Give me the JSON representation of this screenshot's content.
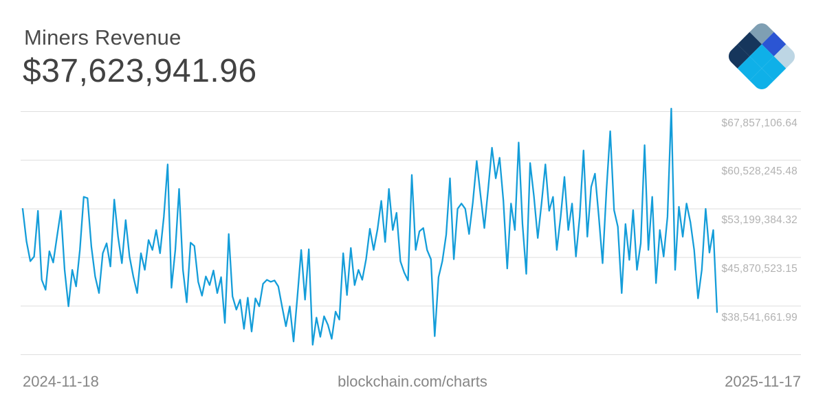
{
  "header": {
    "title": "Miners Revenue",
    "value": "$37,623,941.96"
  },
  "logo": {
    "name": "blockchain-com-logo",
    "colors": {
      "slate": "#7f9fb3",
      "royal": "#2b55d3",
      "light": "#bdd6e4",
      "navy": "#16365c",
      "cyan": "#0fb0e8"
    }
  },
  "footer": {
    "start_date": "2024-11-18",
    "site": "blockchain.com/charts",
    "end_date": "2025-11-17"
  },
  "chart_data": {
    "type": "line",
    "title": "Miners Revenue",
    "current_value_usd": "$37,623,941.96",
    "x_start": "2024-11-18",
    "x_end": "2025-11-17",
    "x_unit": "day (365 days total, series sampled every 2 days)",
    "y_unit": "USD millions",
    "grid": "horizontal-only",
    "legend": "none",
    "line_color": "#149dd9",
    "grid_color": "#dedede",
    "tick_label_color": "#b2b2b2",
    "ytick_labels": [
      "$67,857,106.64",
      "$60,528,245.48",
      "$53,199,384.32",
      "$45,870,523.15",
      "$38,541,661.99"
    ],
    "ytick_values_m": [
      67.857107,
      60.528245,
      53.199384,
      45.870523,
      38.541662
    ],
    "ylim_m": [
      31.212801,
      68.5
    ],
    "values_m": [
      53.2,
      48.3,
      45.3,
      46.0,
      52.9,
      42.5,
      41.0,
      46.8,
      45.1,
      49.0,
      52.9,
      44.0,
      38.5,
      44.0,
      41.5,
      47.0,
      55.0,
      54.8,
      47.5,
      43.0,
      40.5,
      46.5,
      48.0,
      44.5,
      54.6,
      49.0,
      45.0,
      51.5,
      46.0,
      43.0,
      40.5,
      46.5,
      44.0,
      48.5,
      47.0,
      50.0,
      46.5,
      52.0,
      59.9,
      41.3,
      47.0,
      56.2,
      44.0,
      39.1,
      48.1,
      47.6,
      42.2,
      40.1,
      43.0,
      41.7,
      43.9,
      40.5,
      42.9,
      36.0,
      49.4,
      40.0,
      38.0,
      39.5,
      35.1,
      39.8,
      34.7,
      39.7,
      38.5,
      41.9,
      42.5,
      42.2,
      42.4,
      41.5,
      38.4,
      35.5,
      38.5,
      33.2,
      40.0,
      47.0,
      39.5,
      47.1,
      32.7,
      36.8,
      33.9,
      37.0,
      35.7,
      33.6,
      37.7,
      36.5,
      46.5,
      40.2,
      47.3,
      41.7,
      44.0,
      42.5,
      45.6,
      50.2,
      47.0,
      50.1,
      54.4,
      48.2,
      56.2,
      50.0,
      52.6,
      45.3,
      43.6,
      42.4,
      58.3,
      47.0,
      49.8,
      50.3,
      47.0,
      45.6,
      34.0,
      42.9,
      45.3,
      49.3,
      57.8,
      45.6,
      53.2,
      54.0,
      53.2,
      49.4,
      54.2,
      60.4,
      55.3,
      50.3,
      56.1,
      62.4,
      57.8,
      60.9,
      54.4,
      44.2,
      54.0,
      50.0,
      63.2,
      50.9,
      43.4,
      60.1,
      55.1,
      48.8,
      54.0,
      59.9,
      52.9,
      55.0,
      47.0,
      52.0,
      58.0,
      50.0,
      54.0,
      46.0,
      52.0,
      62.0,
      49.0,
      56.5,
      58.5,
      52.0,
      45.0,
      56.0,
      64.9,
      53.0,
      50.5,
      40.5,
      50.9,
      45.5,
      53.0,
      44.0,
      48.0,
      62.8,
      47.0,
      55.0,
      42.0,
      50.0,
      46.0,
      52.0,
      68.3,
      44.0,
      53.5,
      49.0,
      54.0,
      51.2,
      47.0,
      39.7,
      44.0,
      53.2,
      46.6,
      50.0,
      37.62
    ]
  }
}
